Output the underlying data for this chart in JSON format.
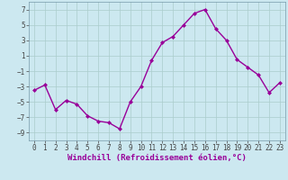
{
  "x": [
    0,
    1,
    2,
    3,
    4,
    5,
    6,
    7,
    8,
    9,
    10,
    11,
    12,
    13,
    14,
    15,
    16,
    17,
    18,
    19,
    20,
    21,
    22,
    23
  ],
  "y": [
    -3.5,
    -2.8,
    -6.0,
    -4.8,
    -5.3,
    -6.8,
    -7.5,
    -7.7,
    -8.5,
    -5.0,
    -3.0,
    0.4,
    2.7,
    3.5,
    5.0,
    6.5,
    7.0,
    4.5,
    3.0,
    0.5,
    -0.5,
    -1.5,
    -3.8,
    -2.5
  ],
  "line_color": "#990099",
  "marker": "D",
  "marker_size": 2.0,
  "bg_color": "#cce8f0",
  "grid_color": "#aacccc",
  "xlabel": "Windchill (Refroidissement éolien,°C)",
  "ylim": [
    -10,
    8
  ],
  "xlim": [
    -0.5,
    23.5
  ],
  "yticks": [
    -9,
    -7,
    -5,
    -3,
    -1,
    1,
    3,
    5,
    7
  ],
  "xticks": [
    0,
    1,
    2,
    3,
    4,
    5,
    6,
    7,
    8,
    9,
    10,
    11,
    12,
    13,
    14,
    15,
    16,
    17,
    18,
    19,
    20,
    21,
    22,
    23
  ],
  "tick_labelsize": 5.5,
  "xlabel_fontsize": 6.5,
  "line_width": 1.0
}
